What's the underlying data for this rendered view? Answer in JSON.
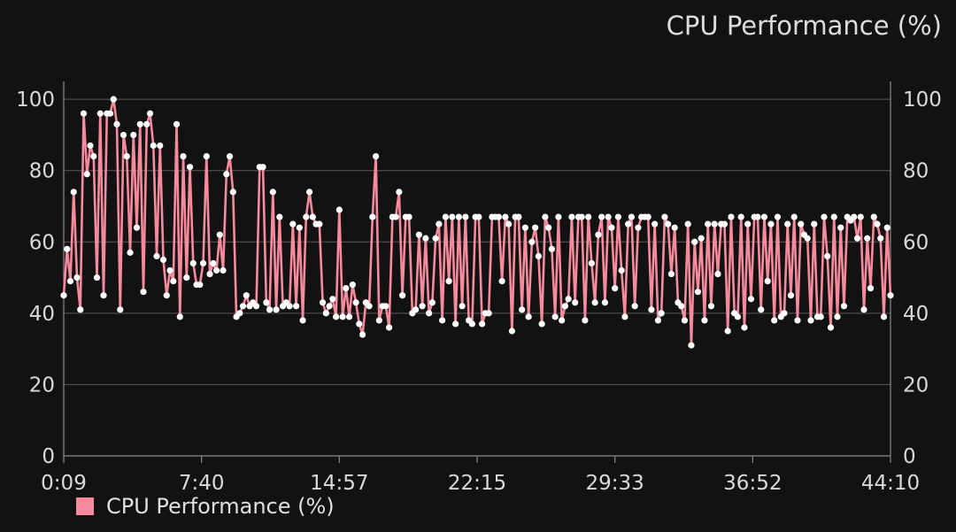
{
  "chart_data": {
    "type": "line",
    "title": "CPU Performance (%)",
    "ylim": [
      0,
      105
    ],
    "y_ticks": [
      0,
      20,
      40,
      60,
      80,
      100
    ],
    "y_tick_labels": [
      "0",
      "20",
      "40",
      "60",
      "80",
      "100"
    ],
    "x_ticks": [
      0,
      1,
      2,
      3,
      4,
      5,
      6
    ],
    "x_tick_labels": [
      "0:09",
      "7:40",
      "14:57",
      "22:15",
      "29:33",
      "36:52",
      "44:10"
    ],
    "xlim": [
      0,
      6
    ],
    "grid": true,
    "legend_position": "bottom-left",
    "series": [
      {
        "name": "CPU Performance (%)",
        "color": "#f48a9c",
        "values": [
          45,
          58,
          49,
          74,
          50,
          41,
          96,
          79,
          87,
          84,
          50,
          96,
          45,
          96,
          96,
          100,
          93,
          41,
          90,
          84,
          57,
          90,
          64,
          93,
          46,
          93,
          96,
          87,
          56,
          87,
          55,
          45,
          52,
          49,
          93,
          39,
          84,
          50,
          81,
          54,
          48,
          48,
          54,
          84,
          51,
          54,
          52,
          62,
          52,
          79,
          84,
          74,
          39,
          40,
          42,
          45,
          42,
          43,
          42,
          81,
          81,
          43,
          41,
          74,
          41,
          67,
          42,
          43,
          42,
          65,
          42,
          64,
          38,
          67,
          74,
          67,
          65,
          65,
          43,
          40,
          42,
          44,
          39,
          69,
          39,
          47,
          39,
          48,
          43,
          37,
          34,
          43,
          42,
          67,
          84,
          38,
          42,
          42,
          36,
          67,
          67,
          74,
          45,
          67,
          67,
          40,
          41,
          62,
          42,
          61,
          40,
          43,
          61,
          65,
          38,
          67,
          49,
          67,
          37,
          67,
          42,
          67,
          38,
          37,
          67,
          67,
          37,
          40,
          40,
          67,
          67,
          67,
          49,
          67,
          65,
          35,
          67,
          67,
          41,
          64,
          39,
          60,
          64,
          56,
          37,
          67,
          64,
          58,
          39,
          67,
          38,
          42,
          44,
          67,
          43,
          67,
          67,
          38,
          67,
          54,
          43,
          62,
          67,
          43,
          67,
          64,
          47,
          67,
          52,
          39,
          65,
          67,
          42,
          64,
          67,
          67,
          67,
          41,
          65,
          38,
          40,
          67,
          65,
          51,
          64,
          43,
          42,
          38,
          65,
          31,
          60,
          46,
          61,
          38,
          65,
          42,
          65,
          51,
          65,
          65,
          35,
          67,
          40,
          39,
          67,
          36,
          65,
          44,
          67,
          67,
          41,
          67,
          49,
          65,
          38,
          67,
          39,
          40,
          65,
          45,
          67,
          38,
          65,
          62,
          61,
          38,
          65,
          39,
          39,
          67,
          56,
          36,
          67,
          39,
          64,
          42,
          67,
          66,
          67,
          61,
          67,
          41,
          61,
          47,
          67,
          65,
          61,
          39,
          64,
          45
        ]
      }
    ]
  }
}
